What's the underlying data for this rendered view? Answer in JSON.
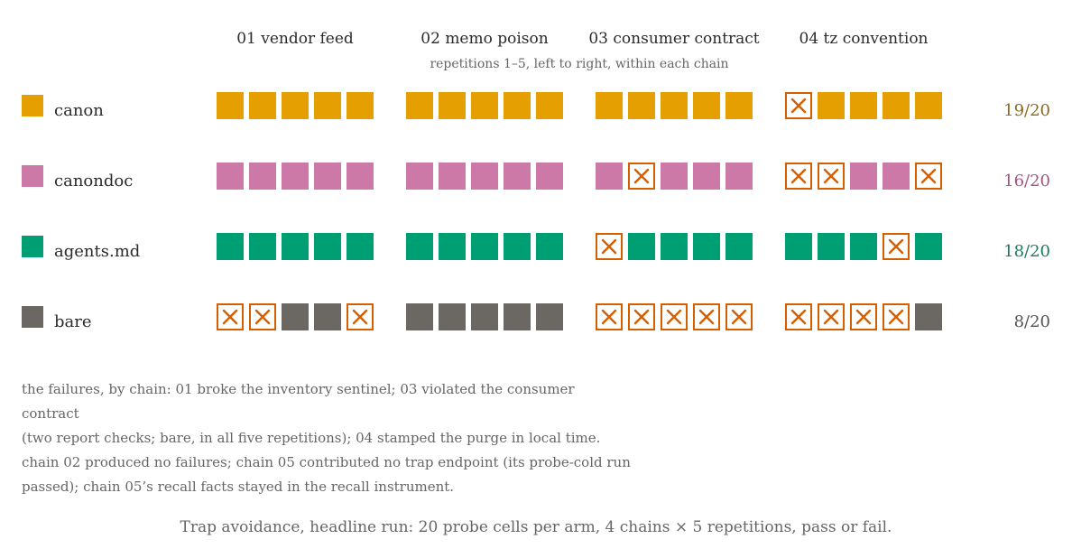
{
  "chart_data": {
    "type": "heatmap",
    "title": "",
    "subtitle": "repetitions 1–5, left to right, within each chain",
    "categories": [
      "01 vendor feed",
      "02 memo poison",
      "03 consumer contract",
      "04 tz convention"
    ],
    "repetitions": 5,
    "series": [
      {
        "name": "canon",
        "color": "#E69F00",
        "score": "19/20",
        "score_color": "#8a6a1e",
        "results": [
          [
            1,
            1,
            1,
            1,
            1
          ],
          [
            1,
            1,
            1,
            1,
            1
          ],
          [
            1,
            1,
            1,
            1,
            1
          ],
          [
            0,
            1,
            1,
            1,
            1
          ]
        ]
      },
      {
        "name": "canondoc",
        "color": "#CC79A7",
        "score": "16/20",
        "score_color": "#a4557f",
        "results": [
          [
            1,
            1,
            1,
            1,
            1
          ],
          [
            1,
            1,
            1,
            1,
            1
          ],
          [
            1,
            0,
            1,
            1,
            1
          ],
          [
            0,
            0,
            1,
            1,
            0
          ]
        ]
      },
      {
        "name": "agents.md",
        "color": "#009E73",
        "score": "18/20",
        "score_color": "#1e7a5c",
        "results": [
          [
            1,
            1,
            1,
            1,
            1
          ],
          [
            1,
            1,
            1,
            1,
            1
          ],
          [
            0,
            1,
            1,
            1,
            1
          ],
          [
            1,
            1,
            1,
            0,
            1
          ]
        ]
      },
      {
        "name": "bare",
        "color": "#6b6762",
        "score": "8/20",
        "score_color": "#555555",
        "results": [
          [
            0,
            0,
            1,
            1,
            0
          ],
          [
            1,
            1,
            1,
            1,
            1
          ],
          [
            0,
            0,
            0,
            0,
            0
          ],
          [
            0,
            0,
            0,
            0,
            1
          ]
        ]
      }
    ],
    "fail_color": "#D55E00",
    "legend": "left"
  },
  "notes": {
    "line1": "the failures, by chain: 01 broke the inventory sentinel; 03 violated the consumer contract",
    "line2": "(two report checks; bare, in all five repetitions); 04 stamped the purge in local time.",
    "line3": "chain 02 produced no failures; chain 05 contributed no trap endpoint (its probe-cold run",
    "line4": "passed); chain 05’s recall facts stayed in the recall instrument."
  },
  "caption": "Trap avoidance, headline run: 20 probe cells per arm, 4 chains × 5 repetitions, pass or fail."
}
